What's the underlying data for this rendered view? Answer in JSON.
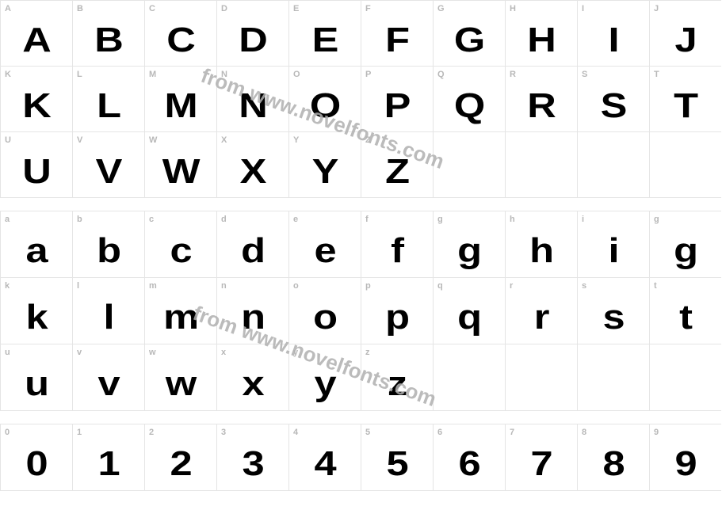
{
  "watermark_text": "from www.novelfonts.com",
  "watermark_color": "#b0b0b0",
  "label_color": "#b8b8b8",
  "glyph_color": "#000000",
  "border_color": "#e5e5e5",
  "background_color": "#ffffff",
  "label_fontsize": 11,
  "glyph_fontsize": 44,
  "sections": [
    {
      "rows": [
        {
          "height": "short",
          "cells": [
            {
              "label": "A",
              "glyph": "A"
            },
            {
              "label": "B",
              "glyph": "B"
            },
            {
              "label": "C",
              "glyph": "C"
            },
            {
              "label": "D",
              "glyph": "D"
            },
            {
              "label": "E",
              "glyph": "E"
            },
            {
              "label": "F",
              "glyph": "F"
            },
            {
              "label": "G",
              "glyph": "G"
            },
            {
              "label": "H",
              "glyph": "H"
            },
            {
              "label": "I",
              "glyph": "I"
            },
            {
              "label": "J",
              "glyph": "J"
            }
          ]
        },
        {
          "height": "short",
          "cells": [
            {
              "label": "K",
              "glyph": "K"
            },
            {
              "label": "L",
              "glyph": "L"
            },
            {
              "label": "M",
              "glyph": "M"
            },
            {
              "label": "N",
              "glyph": "N"
            },
            {
              "label": "O",
              "glyph": "O"
            },
            {
              "label": "P",
              "glyph": "P"
            },
            {
              "label": "Q",
              "glyph": "Q"
            },
            {
              "label": "R",
              "glyph": "R"
            },
            {
              "label": "S",
              "glyph": "S"
            },
            {
              "label": "T",
              "glyph": "T"
            }
          ]
        },
        {
          "height": "short",
          "cells": [
            {
              "label": "U",
              "glyph": "U"
            },
            {
              "label": "V",
              "glyph": "V"
            },
            {
              "label": "W",
              "glyph": "W"
            },
            {
              "label": "X",
              "glyph": "X"
            },
            {
              "label": "Y",
              "glyph": "Y"
            },
            {
              "label": "Z",
              "glyph": "Z"
            },
            {
              "label": "",
              "glyph": ""
            },
            {
              "label": "",
              "glyph": ""
            },
            {
              "label": "",
              "glyph": ""
            },
            {
              "label": "",
              "glyph": ""
            }
          ]
        }
      ]
    },
    {
      "rows": [
        {
          "height": "tall",
          "cells": [
            {
              "label": "a",
              "glyph": "a"
            },
            {
              "label": "b",
              "glyph": "b"
            },
            {
              "label": "c",
              "glyph": "c"
            },
            {
              "label": "d",
              "glyph": "d"
            },
            {
              "label": "e",
              "glyph": "e"
            },
            {
              "label": "f",
              "glyph": "f"
            },
            {
              "label": "g",
              "glyph": "g"
            },
            {
              "label": "h",
              "glyph": "h"
            },
            {
              "label": "i",
              "glyph": "i"
            },
            {
              "label": "g",
              "glyph": "g"
            }
          ]
        },
        {
          "height": "tall",
          "cells": [
            {
              "label": "k",
              "glyph": "k"
            },
            {
              "label": "l",
              "glyph": "l"
            },
            {
              "label": "m",
              "glyph": "m"
            },
            {
              "label": "n",
              "glyph": "n"
            },
            {
              "label": "o",
              "glyph": "o"
            },
            {
              "label": "p",
              "glyph": "p"
            },
            {
              "label": "q",
              "glyph": "q"
            },
            {
              "label": "r",
              "glyph": "r"
            },
            {
              "label": "s",
              "glyph": "s"
            },
            {
              "label": "t",
              "glyph": "t"
            }
          ]
        },
        {
          "height": "tall",
          "cells": [
            {
              "label": "u",
              "glyph": "u"
            },
            {
              "label": "v",
              "glyph": "v"
            },
            {
              "label": "w",
              "glyph": "w"
            },
            {
              "label": "x",
              "glyph": "x"
            },
            {
              "label": "y",
              "glyph": "y"
            },
            {
              "label": "z",
              "glyph": "z"
            },
            {
              "label": "",
              "glyph": ""
            },
            {
              "label": "",
              "glyph": ""
            },
            {
              "label": "",
              "glyph": ""
            },
            {
              "label": "",
              "glyph": ""
            }
          ]
        }
      ]
    },
    {
      "rows": [
        {
          "height": "tall",
          "cells": [
            {
              "label": "0",
              "glyph": "0"
            },
            {
              "label": "1",
              "glyph": "1"
            },
            {
              "label": "2",
              "glyph": "2"
            },
            {
              "label": "3",
              "glyph": "3"
            },
            {
              "label": "4",
              "glyph": "4"
            },
            {
              "label": "5",
              "glyph": "5"
            },
            {
              "label": "6",
              "glyph": "6"
            },
            {
              "label": "7",
              "glyph": "7"
            },
            {
              "label": "8",
              "glyph": "8"
            },
            {
              "label": "9",
              "glyph": "9"
            }
          ]
        }
      ]
    }
  ]
}
